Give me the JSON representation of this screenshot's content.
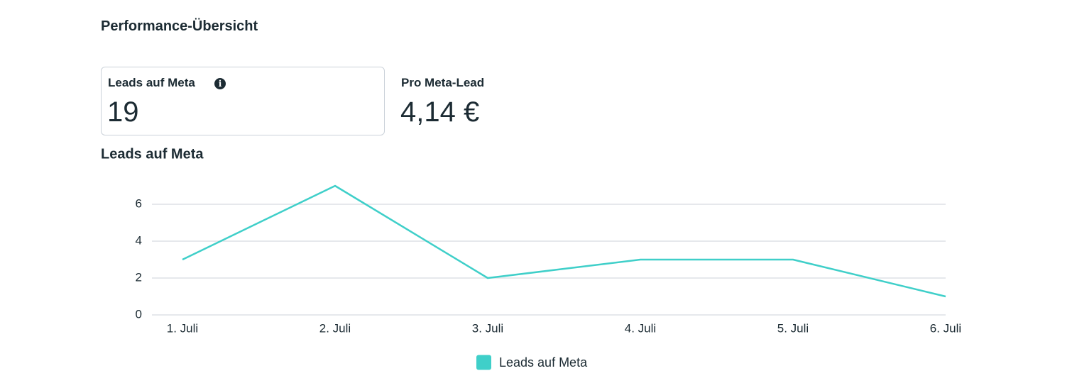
{
  "header": {
    "title": "Performance-Übersicht"
  },
  "metrics": [
    {
      "label": "Leads auf Meta",
      "value": "19"
    },
    {
      "label": "Pro Meta-Lead",
      "value": "4,14 €"
    }
  ],
  "chart_data": {
    "type": "line",
    "title": "Leads auf Meta",
    "categories": [
      "1. Juli",
      "2. Juli",
      "3. Juli",
      "4. Juli",
      "5. Juli",
      "6. Juli"
    ],
    "series": [
      {
        "name": "Leads auf Meta",
        "color": "#3fcfc9",
        "values": [
          3,
          7,
          2,
          3,
          3,
          1
        ]
      }
    ],
    "ylim": [
      0,
      7
    ],
    "yticks": [
      0,
      2,
      4,
      6
    ],
    "grid": true,
    "legend": "bottom"
  }
}
